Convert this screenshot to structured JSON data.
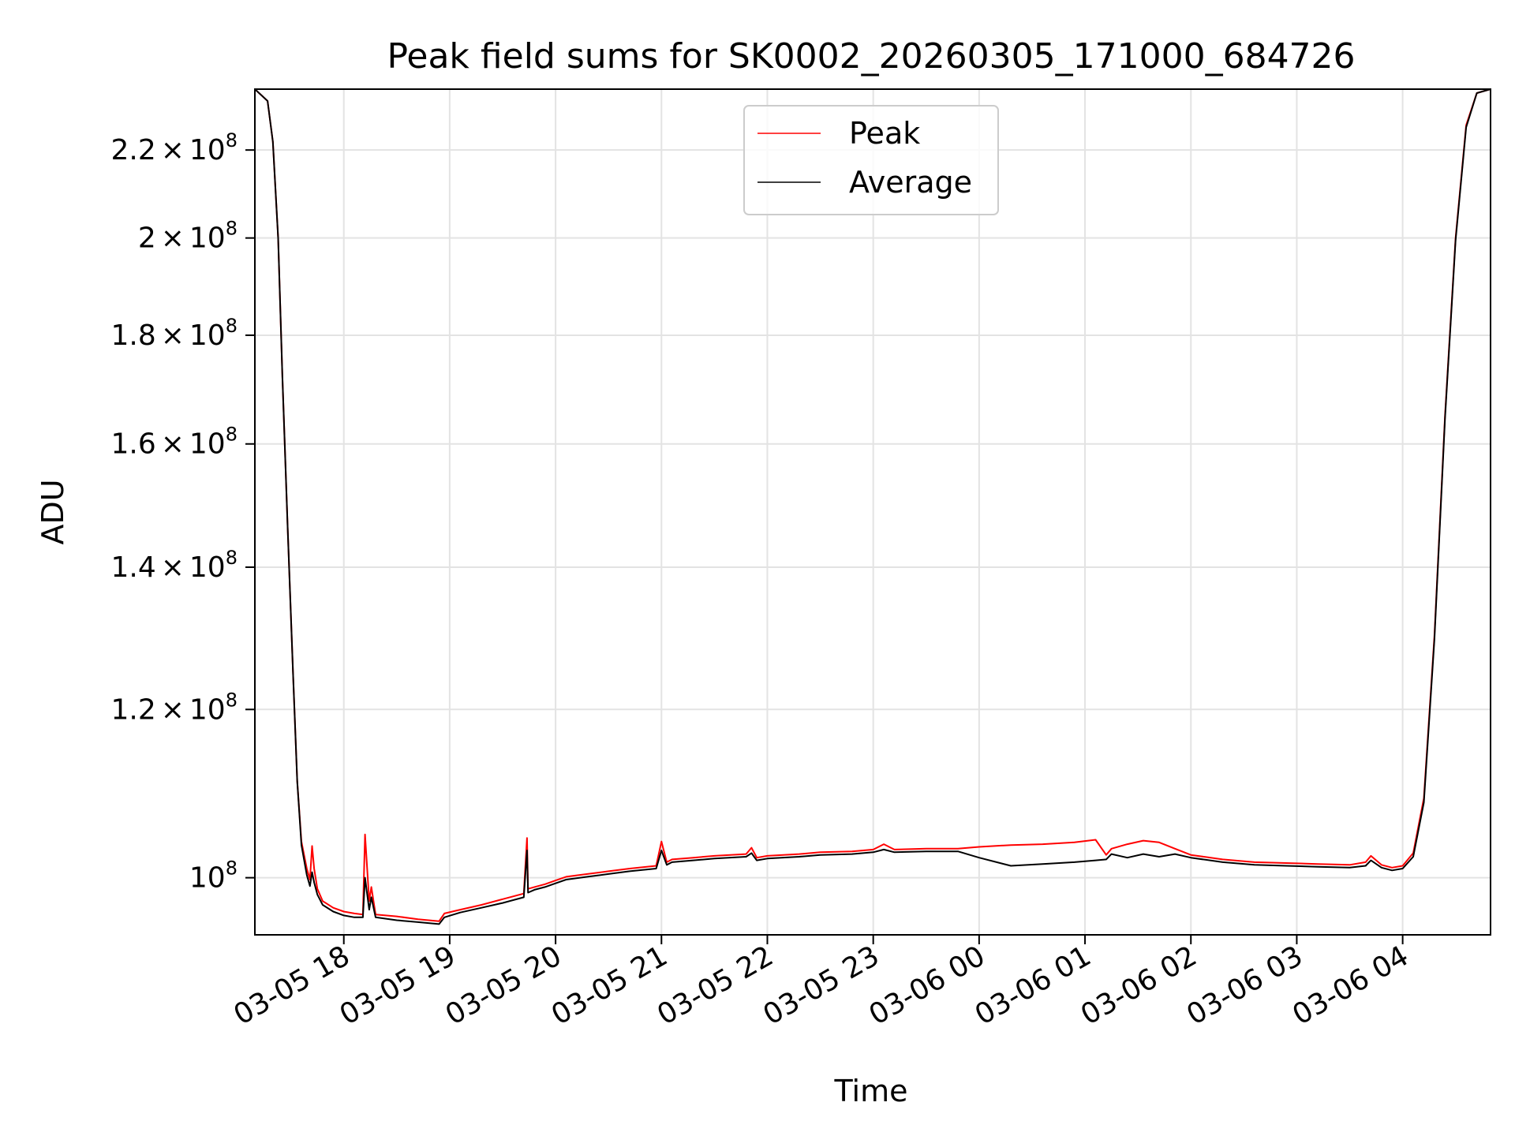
{
  "chart_data": {
    "type": "line",
    "title": "Peak field sums for SK0002_20260305_171000_684726",
    "xlabel": "Time",
    "ylabel": "ADU",
    "yscale": "log",
    "grid": true,
    "legend_position": "top-center",
    "x_unit": "hours since 03-05 17:00",
    "xlim": [
      17.16,
      28.83
    ],
    "ylim": [
      94000000,
      235000000
    ],
    "x_ticks": [
      {
        "value": 18,
        "label": "03-05 18"
      },
      {
        "value": 19,
        "label": "03-05 19"
      },
      {
        "value": 20,
        "label": "03-05 20"
      },
      {
        "value": 21,
        "label": "03-05 21"
      },
      {
        "value": 22,
        "label": "03-05 22"
      },
      {
        "value": 23,
        "label": "03-05 23"
      },
      {
        "value": 24,
        "label": "03-06 00"
      },
      {
        "value": 25,
        "label": "03-06 01"
      },
      {
        "value": 26,
        "label": "03-06 02"
      },
      {
        "value": 27,
        "label": "03-06 03"
      },
      {
        "value": 28,
        "label": "03-06 04"
      }
    ],
    "y_ticks": [
      {
        "value": 100000000,
        "mantissa": "10",
        "exponent": "8",
        "times": ""
      },
      {
        "value": 120000000,
        "mantissa": "1.2",
        "exponent": "8",
        "times": "×"
      },
      {
        "value": 140000000,
        "mantissa": "1.4",
        "exponent": "8",
        "times": "×"
      },
      {
        "value": 160000000,
        "mantissa": "1.6",
        "exponent": "8",
        "times": "×"
      },
      {
        "value": 180000000,
        "mantissa": "1.8",
        "exponent": "8",
        "times": "×"
      },
      {
        "value": 200000000,
        "mantissa": "2",
        "exponent": "8",
        "times": "×"
      },
      {
        "value": 220000000,
        "mantissa": "2.2",
        "exponent": "8",
        "times": "×"
      }
    ],
    "series": [
      {
        "name": "Peak",
        "color": "#ff0000",
        "x": [
          17.16,
          17.28,
          17.33,
          17.38,
          17.42,
          17.47,
          17.52,
          17.56,
          17.6,
          17.65,
          17.68,
          17.7,
          17.72,
          17.75,
          17.8,
          17.9,
          18.0,
          18.1,
          18.18,
          18.2,
          18.24,
          18.26,
          18.3,
          18.5,
          18.7,
          18.9,
          18.95,
          19.1,
          19.3,
          19.5,
          19.7,
          19.73,
          19.74,
          19.8,
          19.9,
          20.0,
          20.1,
          20.3,
          20.5,
          20.7,
          20.95,
          21.0,
          21.05,
          21.1,
          21.3,
          21.5,
          21.8,
          21.85,
          21.9,
          22.0,
          22.3,
          22.5,
          22.8,
          23.0,
          23.1,
          23.2,
          23.5,
          23.8,
          24.0,
          24.3,
          24.6,
          24.9,
          25.1,
          25.2,
          25.25,
          25.4,
          25.55,
          25.7,
          25.85,
          26.0,
          26.3,
          26.6,
          26.9,
          27.2,
          27.5,
          27.65,
          27.7,
          27.8,
          27.9,
          28.0,
          28.1,
          28.2,
          28.3,
          28.4,
          28.5,
          28.6,
          28.7,
          28.83
        ],
        "y": [
          235000000,
          232000000,
          222000000,
          200000000,
          172000000,
          146000000,
          125000000,
          111000000,
          104000000,
          101000000,
          99800000,
          103500000,
          101000000,
          98800000,
          97500000,
          96800000,
          96400000,
          96200000,
          96100000,
          104800000,
          97500000,
          99000000,
          96100000,
          95900000,
          95600000,
          95400000,
          96200000,
          96600000,
          97100000,
          97700000,
          98300000,
          104400000,
          98800000,
          99000000,
          99300000,
          99700000,
          100100000,
          100400000,
          100700000,
          101000000,
          101300000,
          104000000,
          101700000,
          102000000,
          102200000,
          102400000,
          102600000,
          103300000,
          102200000,
          102400000,
          102600000,
          102800000,
          102900000,
          103100000,
          103700000,
          103100000,
          103200000,
          103200000,
          103400000,
          103600000,
          103700000,
          103900000,
          104200000,
          102500000,
          103200000,
          103700000,
          104100000,
          103900000,
          103200000,
          102500000,
          102000000,
          101700000,
          101600000,
          101500000,
          101400000,
          101700000,
          102400000,
          101400000,
          101100000,
          101300000,
          102700000,
          109000000,
          130000000,
          165000000,
          200000000,
          226000000,
          234000000,
          235000000
        ]
      },
      {
        "name": "Average",
        "color": "#000000",
        "x": [
          17.16,
          17.28,
          17.33,
          17.38,
          17.42,
          17.47,
          17.52,
          17.56,
          17.6,
          17.65,
          17.68,
          17.7,
          17.72,
          17.75,
          17.8,
          17.9,
          18.0,
          18.1,
          18.18,
          18.2,
          18.24,
          18.26,
          18.3,
          18.5,
          18.7,
          18.9,
          18.95,
          19.1,
          19.3,
          19.5,
          19.7,
          19.73,
          19.74,
          19.8,
          19.9,
          20.0,
          20.1,
          20.3,
          20.5,
          20.7,
          20.95,
          21.0,
          21.05,
          21.1,
          21.3,
          21.5,
          21.8,
          21.85,
          21.9,
          22.0,
          22.3,
          22.5,
          22.8,
          23.0,
          23.1,
          23.2,
          23.5,
          23.8,
          24.0,
          24.3,
          24.6,
          24.9,
          25.1,
          25.2,
          25.25,
          25.4,
          25.55,
          25.7,
          25.85,
          26.0,
          26.3,
          26.6,
          26.9,
          27.2,
          27.5,
          27.65,
          27.7,
          27.8,
          27.9,
          28.0,
          28.1,
          28.2,
          28.3,
          28.4,
          28.5,
          28.6,
          28.7,
          28.83
        ],
        "y": [
          235000000,
          232000000,
          222000000,
          200000000,
          172000000,
          146000000,
          125000000,
          111000000,
          103600000,
          100300000,
          99100000,
          100600000,
          99500000,
          98200000,
          97100000,
          96400000,
          96000000,
          95800000,
          95800000,
          100000000,
          96600000,
          97900000,
          95800000,
          95500000,
          95300000,
          95100000,
          95800000,
          96300000,
          96800000,
          97300000,
          97900000,
          103000000,
          98400000,
          98700000,
          99000000,
          99400000,
          99800000,
          100100000,
          100400000,
          100700000,
          101000000,
          103000000,
          101400000,
          101700000,
          101900000,
          102100000,
          102300000,
          102700000,
          101900000,
          102100000,
          102300000,
          102500000,
          102600000,
          102800000,
          103100000,
          102800000,
          102900000,
          102900000,
          102200000,
          101300000,
          101500000,
          101700000,
          101900000,
          102000000,
          102600000,
          102200000,
          102600000,
          102300000,
          102600000,
          102200000,
          101700000,
          101400000,
          101300000,
          101200000,
          101100000,
          101300000,
          101900000,
          101100000,
          100800000,
          101000000,
          102300000,
          108500000,
          129500000,
          164500000,
          199500000,
          225500000,
          234000000,
          235000000
        ]
      }
    ]
  }
}
